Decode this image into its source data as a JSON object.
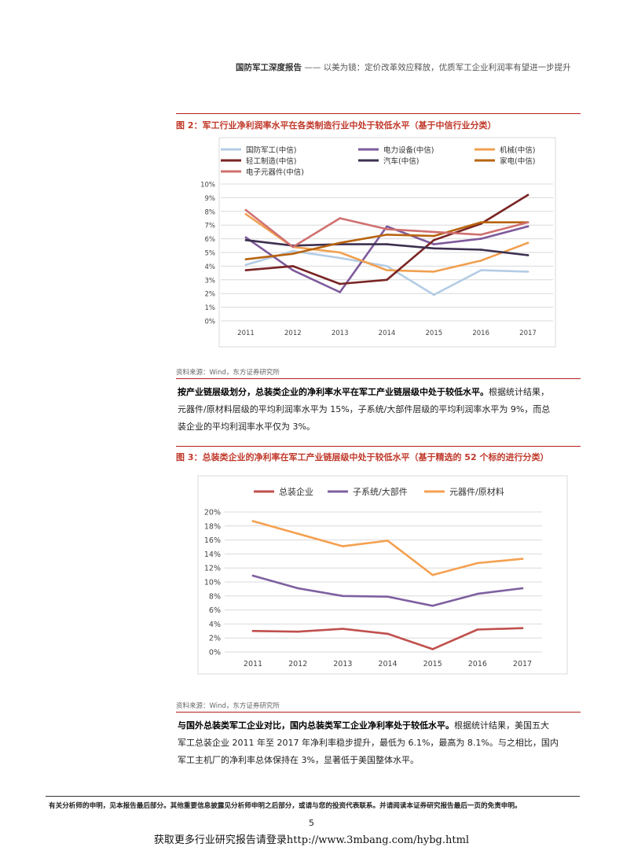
{
  "header": {
    "report_name": "国防军工深度报告",
    "dash": "——",
    "subtitle": "以美为镜：定价改革效应释放，优质军工企业利润率有望进一步提升"
  },
  "figure2": {
    "title": "图 2：军工行业净利润率水平在各类制造行业中处于较低水平（基于中信行业分类）",
    "source": "资料来源：Wind，东方证券研究所"
  },
  "figure3": {
    "title": "图 3：总装类企业的净利率在军工产业链层级中处于较低水平（基于精选的 52 个标的进行分类）",
    "source": "资料来源：Wind，东方证券研究所"
  },
  "paragraph1": {
    "bold": "按产业链层级划分，总装类企业的净利率水平在军工产业链层级中处于较低水平。",
    "line1_rest": "根据统计结果，",
    "line2": "元器件/原材料层级的平均利润率水平为 15%，子系统/大部件层级的平均利润率水平为 9%，而总",
    "line3": "装企业的平均利润率水平仅为 3%。"
  },
  "paragraph2": {
    "bold": "与国外总装类军工企业对比，国内总装类军工企业净利率处于较低水平。",
    "line1_rest": "根据统计结果，美国五大",
    "line2": "军工总装企业 2011 年至 2017 年净利率稳步提升，最低为 6.1%，最高为 8.1%。与之相比，国内",
    "line3": "军工主机厂的净利率总体保持在 3%，显著低于美国整体水平。"
  },
  "footer": {
    "disclaimer": "有关分析师的申明，见本报告最后部分。其他重要信息披露见分析师申明之后部分，或请与您的投资代表联系。并请阅读本证券研究报告最后一页的免责申明。",
    "page_number": "5",
    "promo": "获取更多行业研究报告请登录http://www.3mbang.com/hybg.html"
  },
  "chart_data": [
    {
      "type": "line",
      "x": [
        "2011",
        "2012",
        "2013",
        "2014",
        "2015",
        "2016",
        "2017"
      ],
      "yticks": [
        "0%",
        "1%",
        "2%",
        "3%",
        "4%",
        "5%",
        "6%",
        "7%",
        "8%",
        "9%",
        "10%"
      ],
      "ylim": [
        0,
        10
      ],
      "grid": true,
      "legend": "top",
      "series": [
        {
          "name": "国防军工(中信)",
          "color": "#b4cce4",
          "values": [
            4.1,
            5.1,
            4.6,
            4.0,
            1.9,
            3.7,
            3.6
          ]
        },
        {
          "name": "电力设备(中信)",
          "color": "#7e5a9b",
          "values": [
            6.1,
            3.7,
            2.1,
            6.9,
            5.6,
            6.0,
            6.9
          ]
        },
        {
          "name": "机械(中信)",
          "color": "#f0a050",
          "values": [
            7.8,
            5.4,
            5.0,
            3.7,
            3.6,
            4.4,
            5.7
          ]
        },
        {
          "name": "轻工制造(中信)",
          "color": "#7a2424",
          "values": [
            3.7,
            4.0,
            2.7,
            3.0,
            5.9,
            7.1,
            9.2
          ]
        },
        {
          "name": "汽车(中信)",
          "color": "#3d3050",
          "values": [
            5.9,
            5.5,
            5.6,
            5.6,
            5.3,
            5.2,
            4.8
          ]
        },
        {
          "name": "家电(中信)",
          "color": "#b8640f",
          "values": [
            4.5,
            4.9,
            5.7,
            6.3,
            6.2,
            7.2,
            7.2
          ]
        },
        {
          "name": "电子元器件(中信)",
          "color": "#d07070",
          "values": [
            8.1,
            5.4,
            7.5,
            6.7,
            6.5,
            6.3,
            7.2
          ]
        }
      ]
    },
    {
      "type": "line",
      "x": [
        "2011",
        "2012",
        "2013",
        "2014",
        "2015",
        "2016",
        "2017"
      ],
      "yticks": [
        "0%",
        "2%",
        "4%",
        "6%",
        "8%",
        "10%",
        "12%",
        "14%",
        "16%",
        "18%",
        "20%"
      ],
      "ylim": [
        0,
        20
      ],
      "grid": true,
      "legend": "top",
      "series": [
        {
          "name": "总装企业",
          "color": "#c0504d",
          "values": [
            3.0,
            2.9,
            3.3,
            2.6,
            0.4,
            3.2,
            3.4
          ]
        },
        {
          "name": "子系统/大部件",
          "color": "#7e60a0",
          "values": [
            10.9,
            9.1,
            8.0,
            7.9,
            6.6,
            8.3,
            9.1
          ]
        },
        {
          "name": "元器件/原材料",
          "color": "#f5a050",
          "values": [
            18.7,
            16.9,
            15.1,
            15.9,
            11.0,
            12.7,
            13.3
          ]
        }
      ]
    }
  ]
}
